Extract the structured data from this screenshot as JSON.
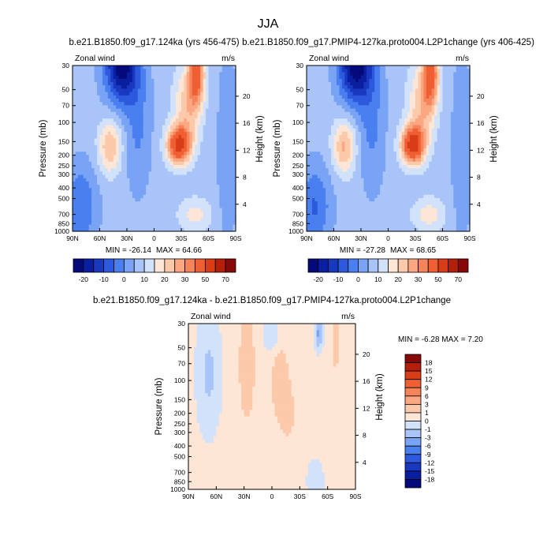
{
  "page_title": "JJA",
  "chart_data": [
    {
      "type": "heatmap",
      "id": "top-left",
      "title": "b.e21.B1850.f09_g17.124ka (yrs 456-475)",
      "variable_label": "Zonal wind",
      "units_label": "m/s",
      "xlabel": "",
      "ylabel": "Pressure (mb)",
      "right_ylabel": "Height (km)",
      "x_ticks": [
        "90N",
        "60N",
        "30N",
        "0",
        "30S",
        "60S",
        "90S"
      ],
      "y_ticks": [
        "30",
        "50",
        "70",
        "100",
        "150",
        "200",
        "250",
        "300",
        "400",
        "500",
        "700",
        "850",
        "1000"
      ],
      "right_y_ticks": [
        "20",
        "16",
        "12",
        "8",
        "4"
      ],
      "min_label": "MIN = -26.14",
      "max_label": "MAX =  64.66",
      "min": -26.14,
      "max": 64.66
    },
    {
      "type": "heatmap",
      "id": "top-right",
      "title": "b.e21.B1850.f09_g17.PMIP4-127ka.proto004.L2P1change (yrs 406-425)",
      "variable_label": "Zonal wind",
      "units_label": "m/s",
      "xlabel": "",
      "ylabel": "Pressure (mb)",
      "right_ylabel": "Height (km)",
      "x_ticks": [
        "90N",
        "60N",
        "30N",
        "0",
        "30S",
        "60S",
        "90S"
      ],
      "y_ticks": [
        "30",
        "50",
        "70",
        "100",
        "150",
        "200",
        "250",
        "300",
        "400",
        "500",
        "700",
        "850",
        "1000"
      ],
      "right_y_ticks": [
        "20",
        "16",
        "12",
        "8",
        "4"
      ],
      "min_label": "MIN = -27.28",
      "max_label": "MAX =  68.65",
      "min": -27.28,
      "max": 68.65
    },
    {
      "type": "heatmap",
      "id": "bottom-diff",
      "title": "b.e21.B1850.f09_g17.124ka - b.e21.B1850.f09_g17.PMIP4-127ka.proto004.L2P1change",
      "variable_label": "Zonal wind",
      "units_label": "m/s",
      "xlabel": "",
      "ylabel": "Pressure (mb)",
      "right_ylabel": "Height (km)",
      "x_ticks": [
        "90N",
        "60N",
        "30N",
        "0",
        "30S",
        "60S",
        "90S"
      ],
      "y_ticks": [
        "30",
        "50",
        "70",
        "100",
        "150",
        "200",
        "250",
        "300",
        "400",
        "500",
        "700",
        "850",
        "1000"
      ],
      "right_y_ticks": [
        "20",
        "16",
        "12",
        "8",
        "4"
      ],
      "minmax_label": "MIN =  -6.28   MAX =   7.20",
      "min": -6.28,
      "max": 7.2
    }
  ],
  "colorbars": {
    "top": {
      "labels": [
        "-20",
        "-10",
        "0",
        "10",
        "20",
        "30",
        "50",
        "70"
      ],
      "levels": [
        -25,
        -20,
        -15,
        -10,
        -5,
        0,
        5,
        10,
        15,
        20,
        25,
        30,
        40,
        50,
        60,
        70
      ],
      "colors": [
        "#050a7a",
        "#0a1ea0",
        "#1838c0",
        "#2d59dc",
        "#4a7ff0",
        "#79a3f5",
        "#a8c4f8",
        "#d2e2fb",
        "#fde6d6",
        "#fcc9aa",
        "#fba781",
        "#f6845a",
        "#ef5f33",
        "#d83d18",
        "#b41f0c",
        "#870808"
      ]
    },
    "bottom": {
      "labels": [
        "18",
        "15",
        "12",
        "9",
        "6",
        "3",
        "1",
        "0",
        "-1",
        "-3",
        "-6",
        "-9",
        "-12",
        "-15",
        "-18"
      ],
      "colors": [
        "#870808",
        "#b41f0c",
        "#d83d18",
        "#ef5f33",
        "#f6845a",
        "#fba781",
        "#fcc9aa",
        "#fde6d6",
        "#d2e2fb",
        "#a8c4f8",
        "#79a3f5",
        "#4a7ff0",
        "#2d59dc",
        "#1838c0",
        "#0a1ea0",
        "#050a7a"
      ]
    }
  }
}
